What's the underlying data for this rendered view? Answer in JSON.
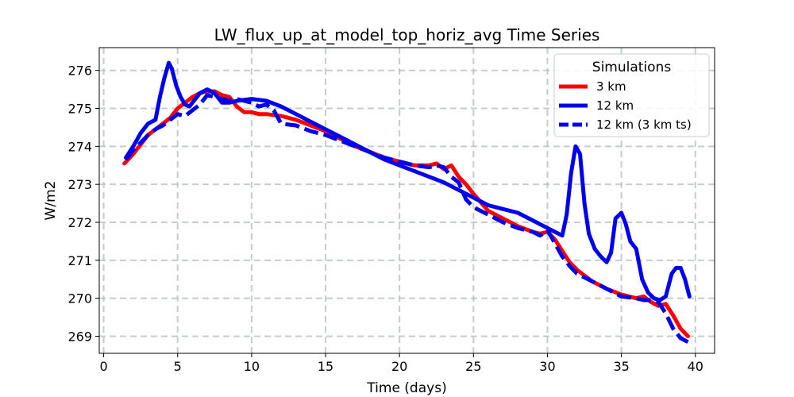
{
  "chart_data": {
    "type": "line",
    "title": "LW_flux_up_at_model_top_horiz_avg Time Series",
    "xlabel": "Time (days)",
    "ylabel": "W/m2",
    "xlim": [
      -0.3,
      41.3
    ],
    "ylim": [
      268.55,
      276.6
    ],
    "xticks": [
      0,
      5,
      10,
      15,
      20,
      25,
      30,
      35,
      40
    ],
    "yticks": [
      269,
      270,
      271,
      272,
      273,
      274,
      275,
      276
    ],
    "grid": true,
    "legend": {
      "title": "Simulations",
      "placement": "top-right"
    },
    "series": [
      {
        "name": "3 km",
        "color": "#ff0000",
        "dash": "solid",
        "x": [
          1.4,
          2.0,
          2.5,
          3.0,
          3.5,
          4.0,
          4.5,
          5.0,
          5.5,
          6.0,
          6.5,
          7.0,
          7.5,
          8.0,
          8.5,
          9.0,
          9.5,
          10.0,
          10.5,
          11.0,
          12.0,
          13.0,
          14.0,
          15.0,
          16.0,
          17.0,
          18.0,
          19.0,
          20.0,
          21.0,
          22.0,
          22.5,
          23.0,
          23.5,
          24.0,
          24.5,
          25.0,
          26.0,
          27.0,
          28.0,
          29.0,
          29.5,
          30.0,
          30.5,
          31.0,
          31.5,
          32.0,
          33.0,
          34.0,
          35.0,
          36.0,
          36.5,
          37.0,
          37.5,
          38.0,
          38.5,
          39.0,
          39.5
        ],
        "y": [
          273.55,
          273.8,
          274.05,
          274.3,
          274.45,
          274.6,
          274.75,
          275.0,
          275.15,
          275.3,
          275.4,
          275.45,
          275.45,
          275.35,
          275.3,
          275.05,
          274.9,
          274.9,
          274.85,
          274.85,
          274.8,
          274.7,
          274.55,
          274.4,
          274.2,
          274.0,
          273.85,
          273.7,
          273.6,
          273.5,
          273.5,
          273.55,
          273.4,
          273.5,
          273.2,
          273.0,
          272.75,
          272.3,
          272.1,
          271.9,
          271.75,
          271.7,
          271.75,
          271.55,
          271.25,
          270.95,
          270.75,
          270.45,
          270.25,
          270.1,
          270.0,
          270.05,
          269.9,
          269.8,
          269.85,
          269.55,
          269.2,
          269.0
        ]
      },
      {
        "name": "12 km",
        "color": "#0000ee",
        "dash": "solid",
        "x": [
          1.5,
          2.0,
          2.5,
          3.0,
          3.5,
          3.8,
          4.1,
          4.4,
          4.6,
          4.9,
          5.2,
          5.5,
          5.8,
          6.1,
          6.5,
          7.0,
          7.5,
          8.0,
          8.5,
          9.0,
          10.0,
          11.0,
          12.0,
          13.0,
          14.0,
          15.0,
          16.0,
          17.0,
          18.0,
          19.0,
          20.0,
          21.0,
          22.0,
          23.0,
          24.0,
          25.0,
          26.0,
          27.0,
          28.0,
          29.0,
          30.0,
          30.5,
          31.0,
          31.3,
          31.6,
          31.9,
          32.2,
          32.5,
          32.8,
          33.2,
          33.6,
          34.0,
          34.3,
          34.6,
          35.0,
          35.3,
          35.6,
          36.0,
          36.4,
          36.8,
          37.2,
          37.6,
          38.0,
          38.4,
          38.7,
          39.0,
          39.3,
          39.6
        ],
        "y": [
          273.7,
          274.0,
          274.35,
          274.6,
          274.7,
          275.3,
          275.8,
          276.2,
          276.05,
          275.6,
          275.3,
          275.1,
          275.05,
          275.2,
          275.4,
          275.5,
          275.4,
          275.15,
          275.15,
          275.2,
          275.25,
          275.2,
          275.05,
          274.85,
          274.65,
          274.45,
          274.25,
          274.05,
          273.85,
          273.65,
          273.5,
          273.35,
          273.2,
          273.05,
          272.85,
          272.65,
          272.45,
          272.35,
          272.25,
          272.05,
          271.85,
          271.75,
          271.65,
          272.2,
          273.3,
          274.0,
          273.8,
          272.5,
          271.7,
          271.3,
          271.1,
          270.95,
          271.2,
          272.1,
          272.25,
          271.95,
          271.5,
          271.3,
          270.5,
          270.15,
          270.0,
          269.95,
          270.05,
          270.65,
          270.8,
          270.8,
          270.5,
          270.05
        ]
      },
      {
        "name": "12 km (3 km ts)",
        "color": "#0000ee",
        "dash": "dashed",
        "x": [
          1.5,
          2.0,
          2.5,
          3.0,
          3.5,
          4.0,
          4.5,
          5.0,
          5.5,
          6.0,
          6.5,
          7.0,
          7.5,
          8.0,
          8.5,
          9.0,
          9.5,
          10.0,
          10.5,
          11.0,
          11.5,
          12.0,
          13.0,
          14.0,
          15.0,
          16.0,
          17.0,
          18.0,
          19.0,
          20.0,
          21.0,
          22.0,
          22.5,
          23.0,
          23.5,
          24.0,
          24.5,
          25.0,
          26.0,
          27.0,
          28.0,
          29.0,
          29.5,
          30.0,
          30.5,
          31.0,
          31.5,
          32.0,
          33.0,
          34.0,
          35.0,
          36.0,
          36.5,
          37.0,
          37.5,
          38.0,
          38.5,
          39.0,
          39.5
        ],
        "y": [
          273.65,
          273.9,
          274.1,
          274.3,
          274.45,
          274.55,
          274.7,
          274.85,
          274.8,
          274.95,
          275.1,
          275.35,
          275.3,
          275.25,
          275.2,
          275.25,
          275.2,
          275.15,
          275.05,
          275.1,
          274.95,
          274.6,
          274.55,
          274.4,
          274.3,
          274.15,
          274.0,
          273.85,
          273.7,
          273.6,
          273.5,
          273.45,
          273.5,
          273.45,
          273.2,
          273.05,
          272.6,
          272.4,
          272.2,
          272.0,
          271.85,
          271.75,
          271.65,
          271.8,
          271.45,
          271.1,
          270.85,
          270.65,
          270.45,
          270.25,
          270.05,
          270.0,
          269.95,
          269.95,
          269.9,
          269.6,
          269.2,
          268.95,
          268.85
        ]
      }
    ]
  }
}
